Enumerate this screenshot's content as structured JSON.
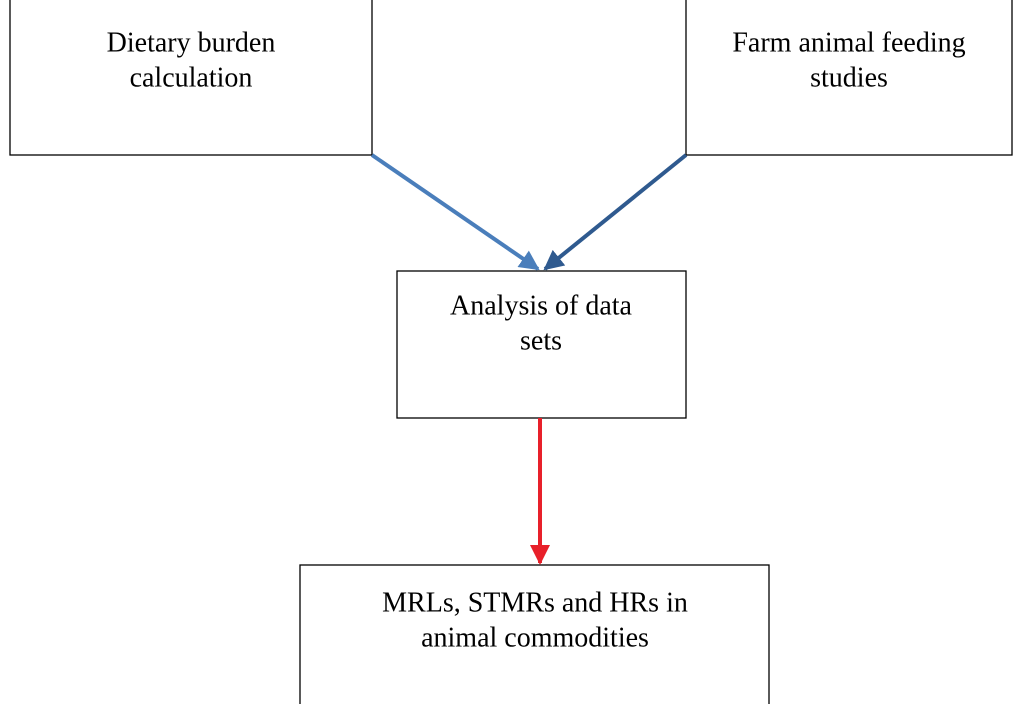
{
  "nodes": [
    {
      "lines": [
        "Dietary burden",
        "calculation"
      ]
    },
    {
      "lines": [
        "Farm animal feeding",
        "studies"
      ]
    },
    {
      "lines": [
        "Analysis of data",
        "sets"
      ]
    },
    {
      "lines": [
        "MRLs, STMRs and HRs in",
        "animal commodities"
      ]
    }
  ]
}
